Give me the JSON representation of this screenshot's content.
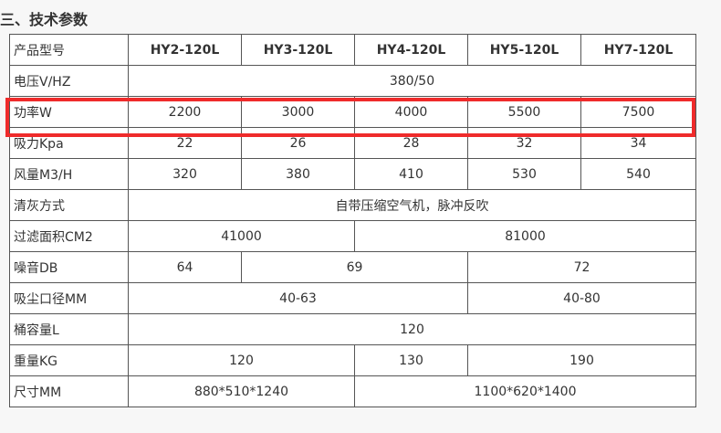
{
  "section_title": "三、技术参数",
  "highlight_color": "#ef2b2b",
  "table": {
    "header": {
      "label": "产品型号",
      "models": [
        "HY2-120L",
        "HY3-120L",
        "HY4-120L",
        "HY5-120L",
        "HY7-120L"
      ]
    },
    "voltage": {
      "label": "电压V/HZ",
      "value": "380/50"
    },
    "power": {
      "label": "功率W",
      "values": [
        "2200",
        "3000",
        "4000",
        "5500",
        "7500"
      ]
    },
    "suction": {
      "label": "吸力Kpa",
      "values": [
        "22",
        "26",
        "28",
        "32",
        "34"
      ]
    },
    "airflow": {
      "label": "风量M3/H",
      "values": [
        "320",
        "380",
        "410",
        "530",
        "540"
      ]
    },
    "cleaning": {
      "label": "清灰方式",
      "value": "自带压缩空气机，脉冲反吹"
    },
    "filter_area": {
      "label": "过滤面积CM2",
      "values": [
        "41000",
        "81000"
      ]
    },
    "noise": {
      "label": "噪音DB",
      "values": [
        "64",
        "69",
        "72"
      ]
    },
    "inlet": {
      "label": "吸尘口径MM",
      "values": [
        "40-63",
        "40-80"
      ]
    },
    "capacity": {
      "label": "桶容量L",
      "value": "120"
    },
    "weight": {
      "label": "重量KG",
      "values": [
        "120",
        "130",
        "190"
      ]
    },
    "size": {
      "label": "尺寸MM",
      "values": [
        "880*510*1240",
        "1100*620*1400"
      ]
    }
  }
}
